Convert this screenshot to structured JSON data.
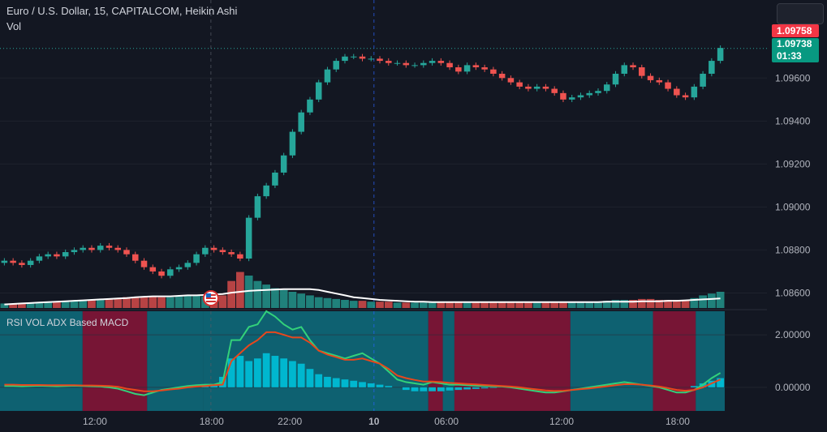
{
  "header": {
    "title": "Euro / U.S. Dollar, 15, CAPITALCOM, Heikin Ashi",
    "volume_label": "Vol"
  },
  "indicator": {
    "label": "RSI VOL ADX Based MACD"
  },
  "price_tags": {
    "last_price": "1.09758",
    "current_price": "1.09738",
    "countdown": "01:33"
  },
  "colors": {
    "background": "#131722",
    "up": "#26a69a",
    "down": "#ef5350",
    "bull_zone": "#0e6e7f",
    "bear_zone": "#8a1538",
    "histogram": "#00bcd4",
    "macd_line": "#33d17a",
    "signal_line": "#e8471c",
    "volume_ma": "#ffffff"
  },
  "chart_data": [
    {
      "type": "candlestick",
      "style": "Heikin Ashi",
      "title": "Euro / U.S. Dollar, 15, CAPITALCOM, Heikin Ashi",
      "y_ticks": [
        "1.09600",
        "1.09400",
        "1.09200",
        "1.09000",
        "1.08800",
        "1.08600"
      ],
      "x_ticks": [
        "12:00",
        "18:00",
        "22:00",
        "10",
        "06:00",
        "12:00",
        "18:00"
      ],
      "ylim": [
        1.0853,
        1.0985
      ],
      "close_path": [
        1.0875,
        1.0874,
        1.0873,
        1.0875,
        1.0877,
        1.0878,
        1.0877,
        1.0879,
        1.088,
        1.0881,
        1.088,
        1.0882,
        1.0881,
        1.088,
        1.0878,
        1.0875,
        1.0872,
        1.087,
        1.0868,
        1.0871,
        1.0872,
        1.0874,
        1.0878,
        1.0881,
        1.088,
        1.0879,
        1.0878,
        1.0876,
        1.0895,
        1.0905,
        1.091,
        1.0916,
        1.0924,
        1.0935,
        1.0944,
        1.095,
        1.0958,
        1.0964,
        1.0968,
        1.097,
        1.097,
        1.0969,
        1.0969,
        1.0968,
        1.0967,
        1.0967,
        1.0966,
        1.0966,
        1.0967,
        1.0968,
        1.0967,
        1.0965,
        1.0963,
        1.0966,
        1.0965,
        1.0964,
        1.0962,
        1.096,
        1.0958,
        1.0956,
        1.0955,
        1.0956,
        1.0955,
        1.0953,
        1.095,
        1.0951,
        1.0952,
        1.0953,
        1.0954,
        1.0957,
        1.0962,
        1.0966,
        1.0965,
        1.0961,
        1.0959,
        1.0958,
        1.0955,
        1.0952,
        1.0951,
        1.0956,
        1.0962,
        1.0968,
        1.0974
      ],
      "last_price": 1.09758,
      "current_price": 1.09738
    },
    {
      "type": "bar",
      "name": "Vol",
      "volume_path": [
        5,
        5,
        5,
        6,
        6,
        7,
        7,
        7,
        8,
        8,
        9,
        9,
        10,
        11,
        12,
        12,
        13,
        13,
        12,
        12,
        13,
        14,
        14,
        13,
        13,
        14,
        30,
        40,
        36,
        30,
        26,
        22,
        20,
        18,
        16,
        14,
        12,
        11,
        10,
        9,
        8,
        8,
        7,
        7,
        7,
        6,
        6,
        6,
        6,
        6,
        7,
        7,
        7,
        6,
        6,
        6,
        6,
        6,
        7,
        7,
        6,
        6,
        6,
        6,
        7,
        7,
        7,
        7,
        7,
        8,
        9,
        9,
        9,
        10,
        10,
        9,
        9,
        9,
        9,
        11,
        14,
        16,
        18
      ],
      "ma_path": [
        4,
        4.5,
        5,
        5.5,
        6,
        6.5,
        7,
        7.5,
        8,
        8.5,
        9,
        9.5,
        10,
        10.5,
        11,
        12,
        12.5,
        13,
        13,
        13,
        13.5,
        14,
        14,
        14.5,
        15,
        15.5,
        17,
        18,
        19,
        19.5,
        20,
        20.5,
        21,
        21,
        21,
        21,
        20,
        18,
        16,
        14,
        12,
        11,
        10,
        9,
        8.5,
        8,
        7.5,
        7,
        7,
        6.5,
        6.5,
        6.5,
        6.5,
        6.5,
        6.5,
        6.5,
        6.5,
        6.5,
        6.5,
        6.5,
        6.5,
        6.5,
        6.5,
        6.5,
        6.5,
        6.5,
        6.5,
        6.5,
        6.5,
        7,
        7,
        7,
        7,
        7.5,
        7.5,
        7.5,
        8,
        8,
        8.5,
        9,
        9.5,
        10,
        10.5
      ]
    },
    {
      "type": "line",
      "title": "RSI VOL ADX Based MACD",
      "y_ticks": [
        "2.00000",
        "0.00000"
      ],
      "ylim": [
        -0.9,
        2.9
      ],
      "zones": [
        {
          "from": 0.0,
          "to": 0.114,
          "state": "bull"
        },
        {
          "from": 0.114,
          "to": 0.203,
          "state": "bear"
        },
        {
          "from": 0.203,
          "to": 0.281,
          "state": "bull"
        },
        {
          "from": 0.281,
          "to": 0.591,
          "state": "bull"
        },
        {
          "from": 0.591,
          "to": 0.611,
          "state": "bear"
        },
        {
          "from": 0.611,
          "to": 0.627,
          "state": "bull"
        },
        {
          "from": 0.627,
          "to": 0.787,
          "state": "bear"
        },
        {
          "from": 0.787,
          "to": 0.901,
          "state": "bull"
        },
        {
          "from": 0.901,
          "to": 0.96,
          "state": "bear"
        },
        {
          "from": 0.96,
          "to": 1.0,
          "state": "bull"
        }
      ],
      "series": [
        {
          "values": [
            0.05,
            0.05,
            0.04,
            0.05,
            0.06,
            0.05,
            0.04,
            0.05,
            0.06,
            0.05,
            0.04,
            0.03,
            0.0,
            -0.05,
            -0.15,
            -0.25,
            -0.3,
            -0.2,
            -0.1,
            -0.05,
            0.0,
            0.05,
            0.08,
            0.1,
            0.1,
            0.2,
            1.8,
            1.8,
            2.3,
            2.4,
            2.9,
            2.7,
            2.4,
            2.2,
            2.3,
            1.8,
            1.4,
            1.3,
            1.2,
            1.1,
            1.2,
            1.3,
            1.1,
            0.9,
            0.6,
            0.3,
            0.2,
            0.15,
            0.1,
            0.2,
            0.15,
            0.1,
            0.1,
            0.08,
            0.06,
            0.05,
            0.04,
            0.03,
            0.0,
            -0.05,
            -0.1,
            -0.15,
            -0.2,
            -0.2,
            -0.15,
            -0.1,
            -0.05,
            0.0,
            0.05,
            0.1,
            0.15,
            0.2,
            0.15,
            0.1,
            0.05,
            0.0,
            -0.1,
            -0.2,
            -0.2,
            -0.1,
            0.1,
            0.35,
            0.55
          ]
        },
        {
          "values": [
            0.1,
            0.1,
            0.09,
            0.09,
            0.09,
            0.08,
            0.08,
            0.08,
            0.08,
            0.07,
            0.07,
            0.06,
            0.05,
            0.02,
            -0.05,
            -0.1,
            -0.15,
            -0.15,
            -0.12,
            -0.08,
            -0.05,
            0.0,
            0.03,
            0.05,
            0.08,
            0.1,
            1.0,
            1.3,
            1.6,
            1.8,
            2.1,
            2.1,
            2.0,
            1.9,
            1.9,
            1.7,
            1.4,
            1.25,
            1.15,
            1.05,
            1.05,
            1.1,
            1.0,
            0.9,
            0.7,
            0.45,
            0.35,
            0.28,
            0.22,
            0.22,
            0.2,
            0.17,
            0.15,
            0.13,
            0.11,
            0.09,
            0.07,
            0.05,
            0.03,
            0.0,
            -0.04,
            -0.08,
            -0.12,
            -0.14,
            -0.13,
            -0.1,
            -0.07,
            -0.04,
            0.0,
            0.04,
            0.08,
            0.12,
            0.12,
            0.1,
            0.07,
            0.03,
            -0.03,
            -0.1,
            -0.13,
            -0.1,
            0.0,
            0.15,
            0.3
          ]
        }
      ],
      "histogram": [
        0.0,
        0.0,
        0.0,
        0.0,
        0.0,
        0.0,
        0.0,
        0.0,
        0.0,
        0.0,
        0.0,
        0.0,
        0.0,
        0.0,
        0.0,
        0.0,
        0.0,
        0.0,
        0.0,
        0.0,
        0.0,
        0.0,
        0.0,
        0.05,
        0.1,
        0.4,
        1.1,
        1.2,
        1.0,
        1.1,
        1.3,
        1.2,
        1.1,
        1.0,
        0.9,
        0.7,
        0.5,
        0.4,
        0.35,
        0.3,
        0.25,
        0.2,
        0.15,
        0.1,
        0.05,
        0.0,
        -0.1,
        -0.15,
        -0.15,
        -0.15,
        -0.15,
        -0.12,
        -0.1,
        -0.08,
        -0.06,
        -0.04,
        -0.02,
        0.0,
        0.0,
        0.0,
        0.0,
        0.0,
        0.0,
        0.0,
        0.0,
        0.0,
        0.0,
        0.0,
        0.0,
        0.0,
        0.0,
        0.0,
        0.0,
        0.0,
        0.0,
        0.0,
        0.0,
        0.0,
        0.0,
        0.05,
        0.15,
        0.25,
        0.35
      ]
    }
  ]
}
